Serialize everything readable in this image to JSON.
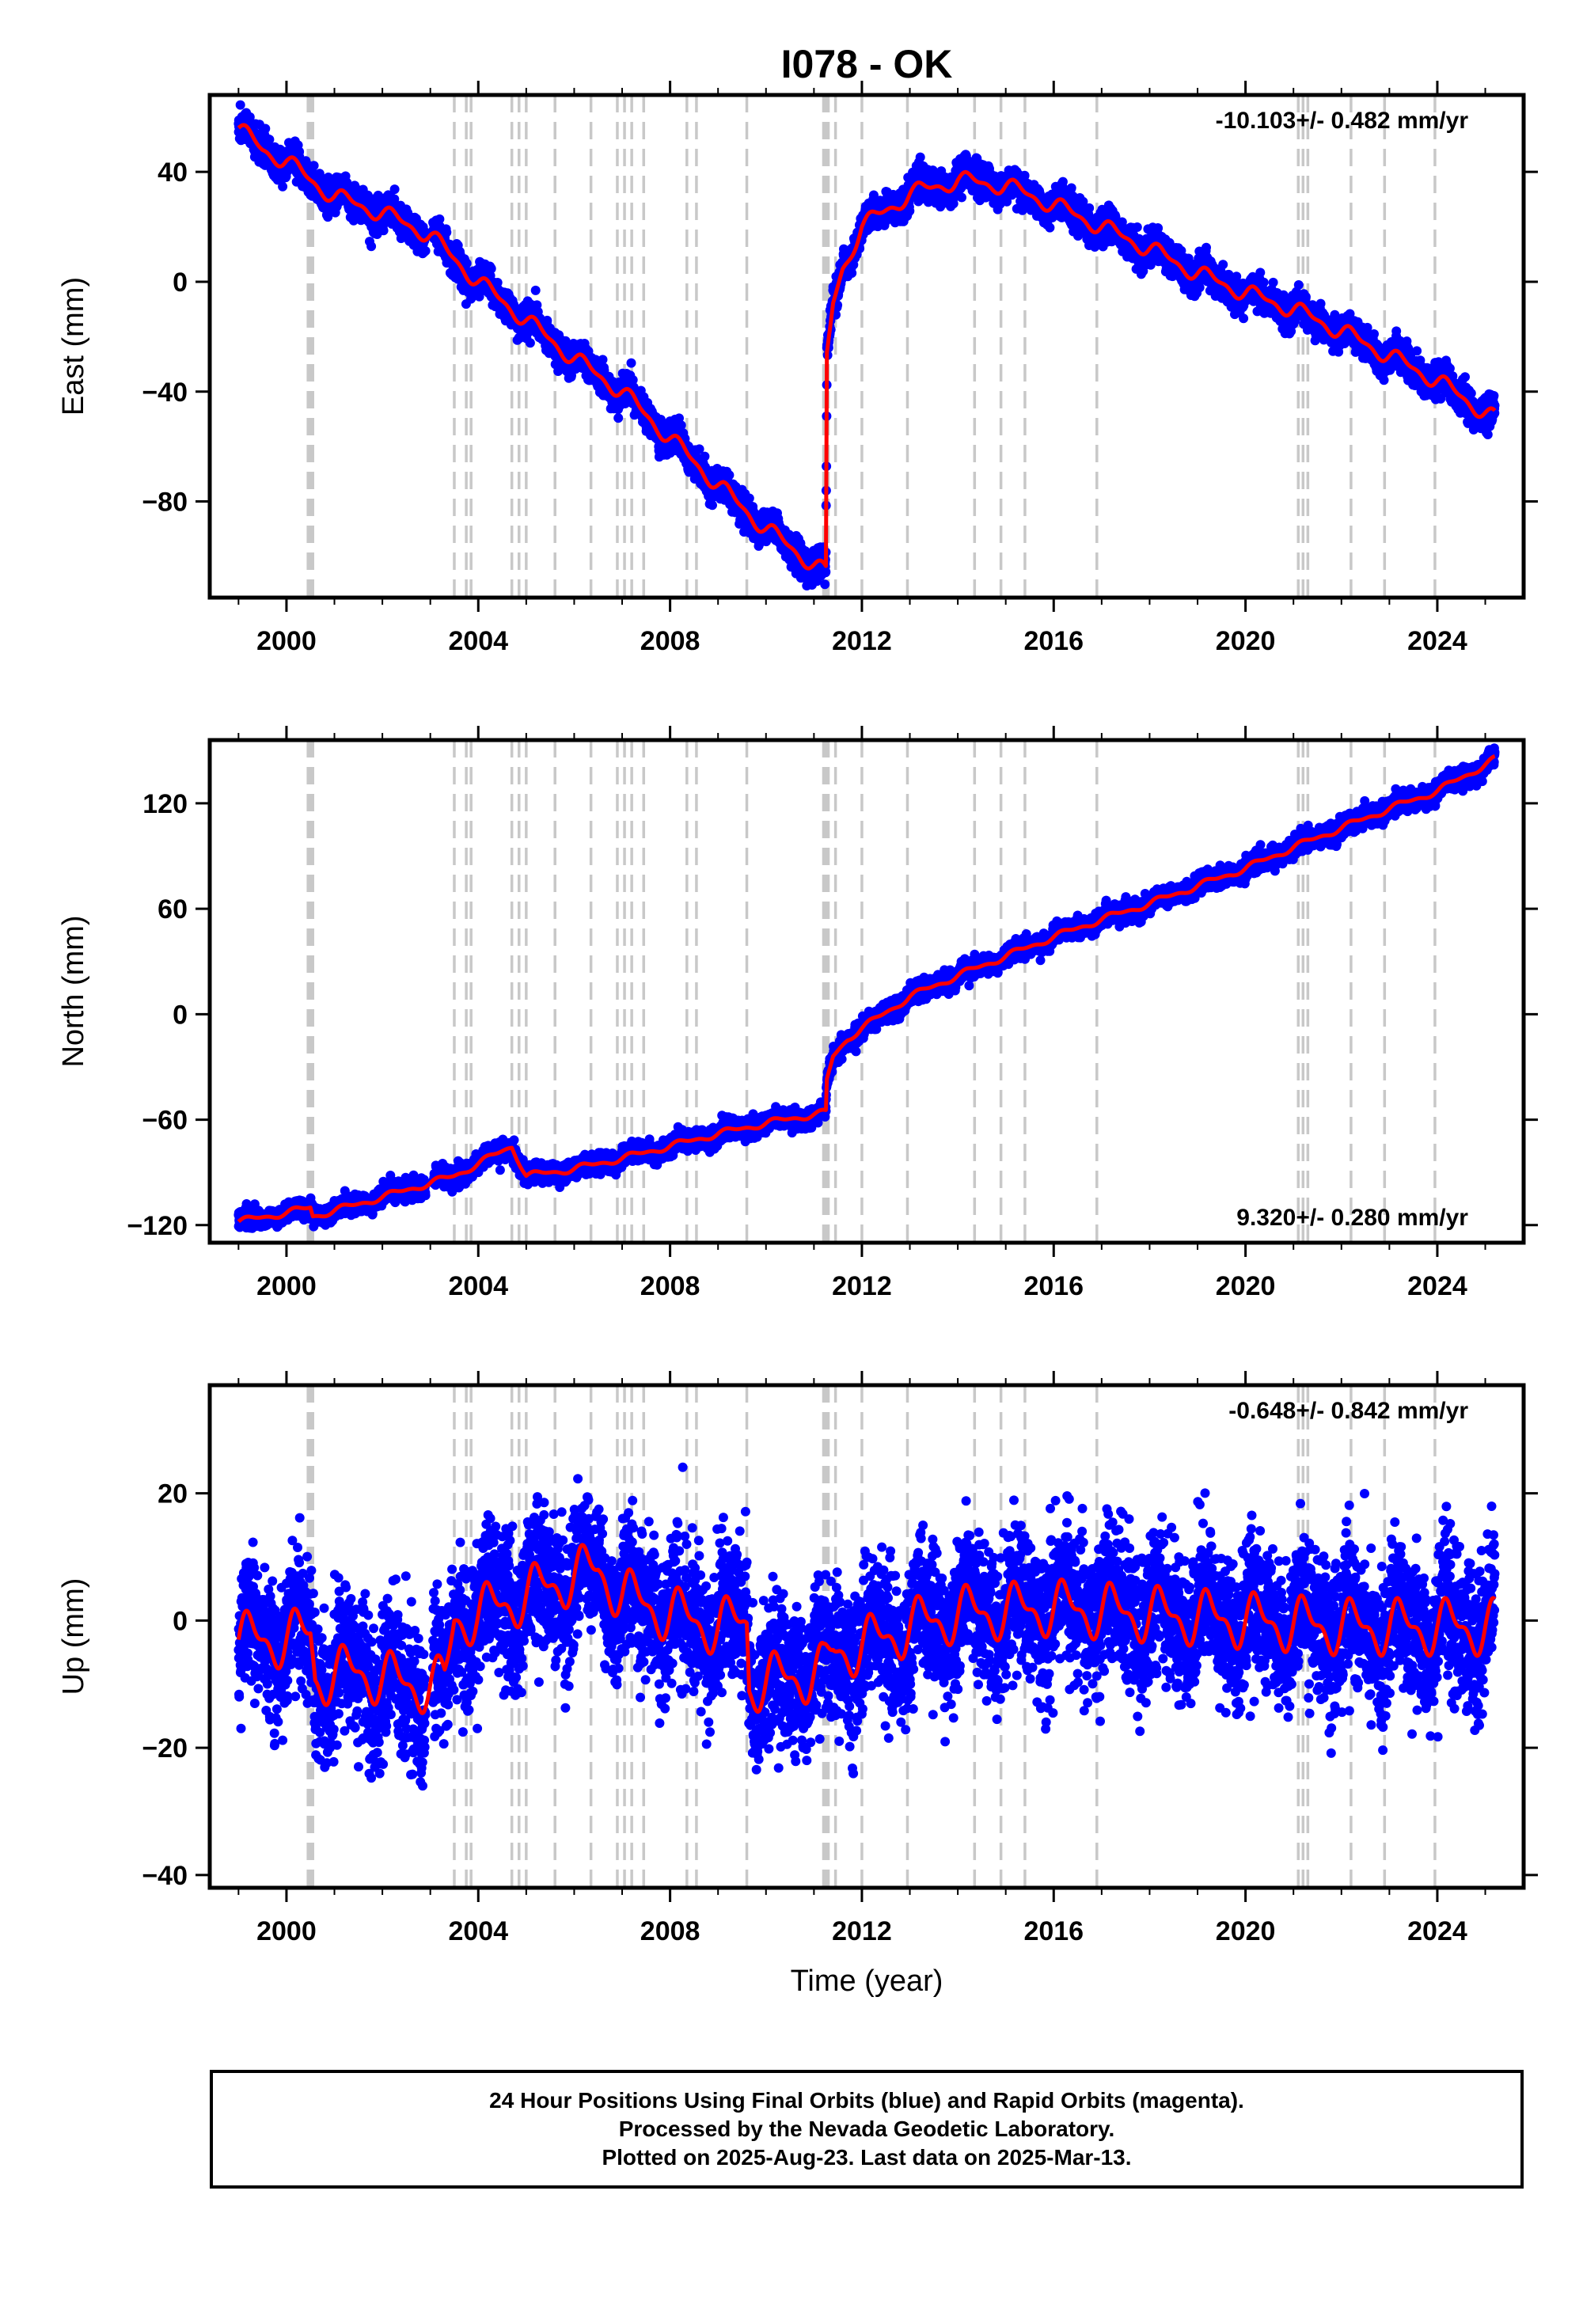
{
  "title": "I078 - OK",
  "xlabel": "Time (year)",
  "colors": {
    "points": "#0000ff",
    "model": "#ff0000",
    "steps": "#c8c8c8",
    "axes": "#000000"
  },
  "footer": {
    "line1": "24 Hour Positions Using Final Orbits (blue) and Rapid Orbits (magenta).",
    "line2": "Processed by the Nevada Geodetic Laboratory.",
    "line3": "Plotted on 2025-Aug-23. Last data on 2025-Mar-13."
  },
  "chart_data": {
    "type": "scatter",
    "x_range": [
      1998.4,
      2025.8
    ],
    "x_ticks": [
      2000,
      2004,
      2008,
      2012,
      2016,
      2020,
      2024
    ],
    "data_start": 1999.0,
    "data_end": 2025.2,
    "steps": [
      2000.45,
      2000.5,
      2000.55,
      2003.5,
      2003.75,
      2003.85,
      2004.7,
      2004.85,
      2005.0,
      2005.6,
      2006.35,
      2006.9,
      2007.05,
      2007.2,
      2007.45,
      2008.35,
      2008.55,
      2009.6,
      2011.2,
      2011.25,
      2011.3,
      2011.45,
      2012.0,
      2012.95,
      2014.35,
      2014.9,
      2015.4,
      2016.9,
      2021.1,
      2021.2,
      2021.3,
      2022.2,
      2022.9,
      2023.95
    ],
    "panels": [
      {
        "name": "east",
        "ylabel": "East (mm)",
        "ylim": [
          -115,
          68
        ],
        "yticks": [
          40,
          0,
          -40,
          -80
        ],
        "rate": "-10.103+/- 0.482 mm/yr",
        "rate_position": "top-right",
        "scatter_sd": 2.8,
        "model": {
          "x": [
            1999.0,
            1999.5,
            2000.0,
            2000.5,
            2001.0,
            2002.0,
            2003.0,
            2003.4,
            2004.0,
            2005.0,
            2006.0,
            2007.0,
            2008.0,
            2009.0,
            2010.0,
            2011.0,
            2011.25,
            2011.27,
            2011.4,
            2011.6,
            2012.0,
            2013.0,
            2014.0,
            2015.0,
            2016.0,
            2017.0,
            2018.0,
            2019.0,
            2020.0,
            2021.0,
            2022.0,
            2023.0,
            2024.0,
            2025.2
          ],
          "y": [
            56,
            48,
            44,
            37,
            31,
            25,
            17,
            10,
            0,
            -14,
            -28,
            -40,
            -57,
            -74,
            -90,
            -103,
            -106,
            -28,
            -8,
            5,
            20,
            32,
            37,
            35,
            28,
            20,
            12,
            3,
            -4,
            -10,
            -18,
            -27,
            -36,
            -50
          ]
        },
        "seasonal_amp": 2.5
      },
      {
        "name": "north",
        "ylabel": "North (mm)",
        "ylim": [
          -130,
          156
        ],
        "yticks": [
          120,
          60,
          0,
          -60,
          -120
        ],
        "rate": "9.320+/- 0.280 mm/yr",
        "rate_position": "bottom-right",
        "scatter_sd": 2.6,
        "model": {
          "x": [
            1999.0,
            2000.0,
            2000.5,
            2000.55,
            2001.5,
            2002.5,
            2003.5,
            2004.0,
            2004.7,
            2005.0,
            2006.0,
            2007.0,
            2008.0,
            2009.0,
            2010.0,
            2011.0,
            2011.25,
            2011.27,
            2011.4,
            2011.7,
            2012.0,
            2013.0,
            2014.0,
            2015.0,
            2016.0,
            2017.0,
            2018.0,
            2019.0,
            2020.0,
            2021.0,
            2022.0,
            2023.0,
            2024.0,
            2025.2
          ],
          "y": [
            -118,
            -113,
            -110,
            -115,
            -108,
            -100,
            -92,
            -85,
            -75,
            -92,
            -88,
            -82,
            -75,
            -68,
            -62,
            -57,
            -56,
            -38,
            -24,
            -14,
            -8,
            10,
            22,
            33,
            44,
            54,
            63,
            73,
            83,
            95,
            106,
            117,
            127,
            145
          ]
        },
        "seasonal_amp": 1.5
      },
      {
        "name": "up",
        "ylabel": "Up (mm)",
        "ylim": [
          -42,
          37
        ],
        "yticks": [
          20,
          0,
          -20,
          -40
        ],
        "rate": "-0.648+/- 0.842 mm/yr",
        "rate_position": "top-right",
        "scatter_sd": 5.5,
        "model": {
          "x": [
            1999.0,
            2000.0,
            2000.5,
            2000.6,
            2001.5,
            2002.5,
            2003.3,
            2003.5,
            2004.0,
            2005.0,
            2006.0,
            2006.5,
            2007.0,
            2008.0,
            2009.0,
            2009.6,
            2009.65,
            2010.5,
            2011.2,
            2011.4,
            2012.0,
            2013.0,
            2014.0,
            2016.0,
            2018.0,
            2020.0,
            2022.0,
            2024.0,
            2025.2
          ],
          "y": [
            -3,
            -3,
            -2,
            -9,
            -8,
            -10,
            -10,
            0,
            1,
            4,
            7,
            8,
            4,
            1,
            -1,
            0,
            -10,
            -9,
            -8,
            -5,
            -4,
            -1,
            1,
            2,
            1,
            0,
            -1,
            -1,
            -1
          ]
        },
        "seasonal_amp": 3.5
      }
    ]
  }
}
